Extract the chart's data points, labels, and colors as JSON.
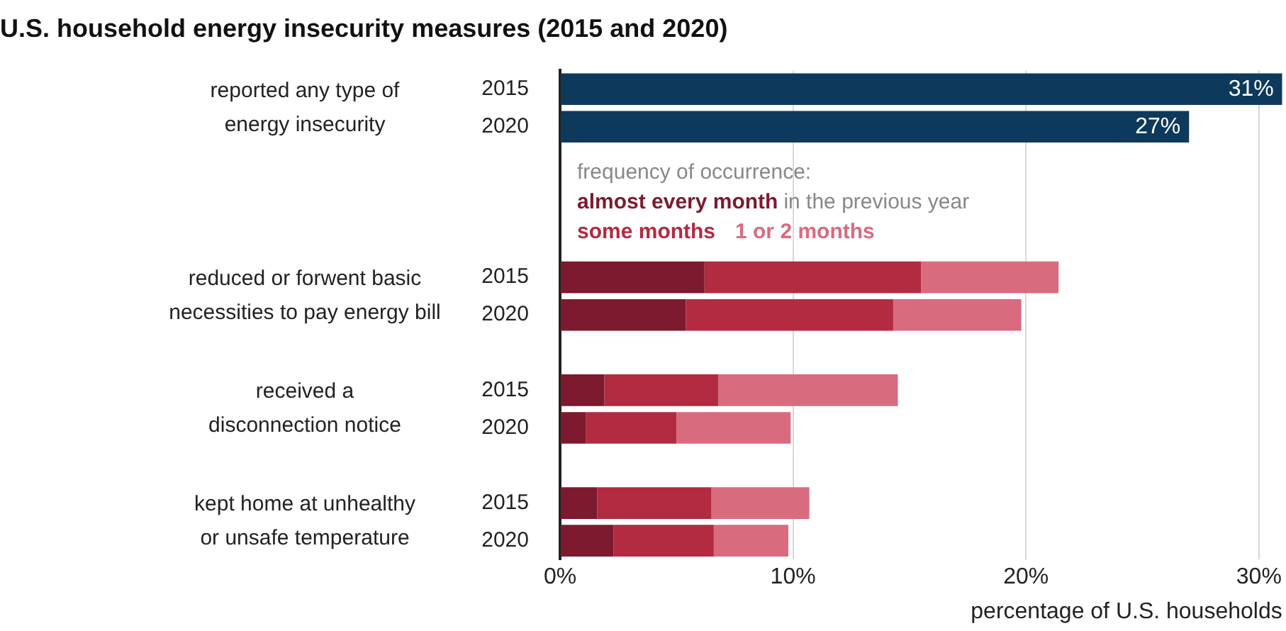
{
  "chart_data": {
    "type": "bar",
    "orientation": "horizontal",
    "stacked": true,
    "title": "U.S. household energy insecurity measures (2015 and 2020)",
    "xlabel": "percentage of U.S. households",
    "legend_title": "frequency of occurrence:",
    "legend": "top",
    "grid": "x",
    "categories": [
      "2015",
      "2020",
      null,
      null,
      null,
      "2015",
      "2020",
      null,
      "2015",
      "2020",
      null,
      "2015",
      "2020"
    ],
    "annotations": [
      "reported any type of energy insecurity",
      "reduced or forwent basic necessities to pay energy bill",
      "received a disconnection notice",
      "kept home at unhealthy or unsafe temperature",
      "in the previous year"
    ],
    "series": [
      {
        "color": "#0d3a5c",
        "values": [
          31,
          27,
          null,
          null,
          null,
          null,
          null,
          null,
          null,
          null,
          null,
          null,
          null
        ],
        "value_labels": [
          "31%",
          "27%",
          null,
          null,
          null,
          null,
          null,
          null,
          null,
          null,
          null,
          null,
          null
        ]
      },
      {
        "name": "almost every month",
        "color": "#7d1a2f",
        "values": [
          null,
          null,
          null,
          null,
          null,
          6.2,
          5.4,
          null,
          1.9,
          1.1,
          null,
          1.6,
          2.3
        ]
      },
      {
        "name": "some months",
        "color": "#b22b40",
        "values": [
          null,
          null,
          null,
          null,
          null,
          9.3,
          8.9,
          null,
          4.9,
          3.9,
          null,
          4.9,
          4.3
        ]
      },
      {
        "name": "1 or 2 months",
        "color": "#d96b7f",
        "values": [
          null,
          null,
          null,
          null,
          null,
          5.9,
          5.5,
          null,
          7.7,
          4.9,
          null,
          4.2,
          3.2
        ]
      }
    ],
    "xlim": [
      0,
      31
    ],
    "xticks": [
      {
        "value": 0,
        "label": "0%"
      },
      {
        "value": 10,
        "label": "10%"
      },
      {
        "value": 20,
        "label": "20%"
      },
      {
        "value": 30,
        "label": "30%"
      }
    ]
  }
}
